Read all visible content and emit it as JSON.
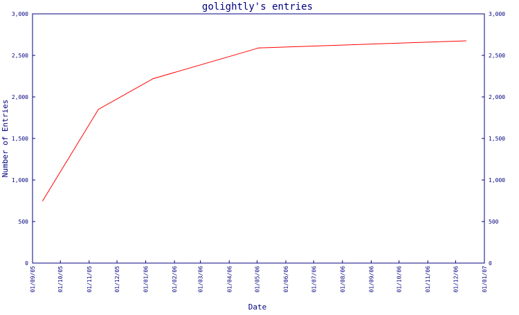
{
  "chart_data": {
    "type": "line",
    "title": "golightly's entries",
    "xlabel": "Date",
    "ylabel": "Number of Entries",
    "ylim": [
      0,
      3000
    ],
    "yticks": [
      0,
      500,
      1000,
      1500,
      2000,
      2500,
      3000
    ],
    "ytick_labels": [
      "0",
      "500",
      "1,000",
      "1,500",
      "2,000",
      "2,500",
      "3,000"
    ],
    "xlim": [
      "2005-09-01",
      "2007-01-01"
    ],
    "xticks": [
      "2005-09-01",
      "2005-10-01",
      "2005-11-01",
      "2005-12-01",
      "2006-01-01",
      "2006-02-01",
      "2006-03-01",
      "2006-04-01",
      "2006-05-01",
      "2006-06-01",
      "2006-07-01",
      "2006-08-01",
      "2006-09-01",
      "2006-10-01",
      "2006-11-01",
      "2006-12-01",
      "2007-01-01"
    ],
    "xtick_labels": [
      "01/09/05",
      "01/10/05",
      "01/11/05",
      "01/12/05",
      "01/01/06",
      "01/02/06",
      "01/03/06",
      "01/04/06",
      "01/05/06",
      "01/06/06",
      "01/07/06",
      "01/08/06",
      "01/09/06",
      "01/10/06",
      "01/11/06",
      "01/12/06",
      "01/01/07"
    ],
    "right_axis": true,
    "grid": false,
    "colors": {
      "axis": "#000080",
      "line": "#ff0000",
      "text": "#000080",
      "background": "#ffffff"
    },
    "series": [
      {
        "x": [
          "2005-09-12",
          "2005-11-11",
          "2006-01-09",
          "2006-05-03",
          "2006-12-12"
        ],
        "values": [
          750,
          1850,
          2220,
          2590,
          2675
        ]
      }
    ]
  }
}
